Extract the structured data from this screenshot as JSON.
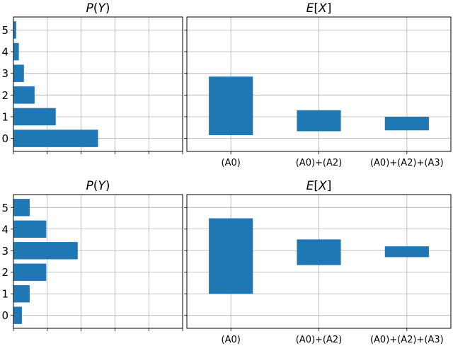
{
  "colors": {
    "bar": "#1f77b4",
    "grid": "#b0b0b0",
    "frame": "#000000"
  },
  "chart_data": [
    {
      "type": "bar",
      "orientation": "horizontal",
      "panel": "top-left",
      "title": "P(Y)",
      "categories": [
        "0",
        "1",
        "2",
        "3",
        "4",
        "5"
      ],
      "values": [
        0.25,
        0.125,
        0.0625,
        0.031,
        0.016,
        0.008
      ],
      "xlim": [
        0,
        0.5
      ],
      "xticks": [
        0,
        0.1,
        0.2,
        0.3,
        0.4,
        0.5
      ],
      "grid": true
    },
    {
      "type": "bar",
      "orientation": "vertical-range",
      "panel": "top-right",
      "title": "E[X]",
      "categories": [
        "(A0)",
        "(A0)+(A2)",
        "(A0)+(A2)+(A3)"
      ],
      "ranges": [
        [
          0.15,
          2.85
        ],
        [
          0.33,
          1.3
        ],
        [
          0.37,
          1.0
        ]
      ],
      "ylim": [
        -0.6,
        5.6
      ],
      "yticks": [
        0,
        1,
        2,
        3,
        4,
        5
      ],
      "grid": true
    },
    {
      "type": "bar",
      "orientation": "horizontal",
      "panel": "bottom-left",
      "title": "P(Y)",
      "categories": [
        "0",
        "1",
        "2",
        "3",
        "4",
        "5"
      ],
      "values": [
        0.025,
        0.048,
        0.097,
        0.19,
        0.097,
        0.048
      ],
      "xlim": [
        0,
        0.5
      ],
      "xticks": [
        0,
        0.1,
        0.2,
        0.3,
        0.4,
        0.5
      ],
      "grid": true
    },
    {
      "type": "bar",
      "orientation": "vertical-range",
      "panel": "bottom-right",
      "title": "E[X]",
      "categories": [
        "(A0)",
        "(A0)+(A2)",
        "(A0)+(A2)+(A3)"
      ],
      "ranges": [
        [
          1.0,
          4.5
        ],
        [
          2.33,
          3.52
        ],
        [
          2.7,
          3.2
        ]
      ],
      "ylim": [
        -0.6,
        5.6
      ],
      "yticks": [
        0,
        1,
        2,
        3,
        4,
        5
      ],
      "grid": true
    }
  ]
}
